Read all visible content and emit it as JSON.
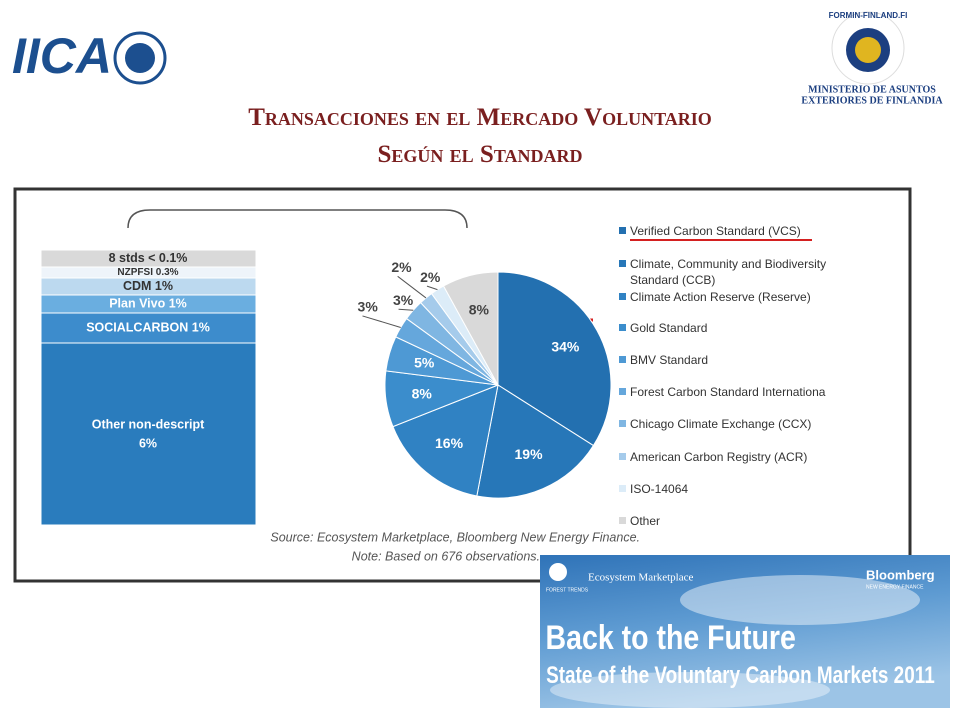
{
  "header": {
    "logo_left": "IICA",
    "logo_right_ring": "FORMIN-FINLAND.FI",
    "ministry_line1": "MINISTERIO DE ASUNTOS",
    "ministry_line2": "EXTERIORES DE FINLANDIA",
    "title_line1": "Transacciones en el Mercado Voluntario",
    "title_line2": "Según el Standard"
  },
  "chart_data": {
    "type": "pie",
    "categories": [
      "Verified Carbon Standard (VCS)",
      "Climate, Community and Biodiversity Standard (CCB)",
      "Climate Action Reserve (Reserve)",
      "Gold Standard",
      "BMV Standard",
      "Forest Carbon Standard Internationa",
      "Chicago Climate Exchange (CCX)",
      "American Carbon Registry (ACR)",
      "ISO-14064",
      "Other"
    ],
    "values": [
      34,
      19,
      16,
      8,
      5,
      3,
      3,
      2,
      2,
      8
    ],
    "value_labels": [
      "34%",
      "19%",
      "16%",
      "8%",
      "5%",
      "3%",
      "3%",
      "2%",
      "2%",
      "8%"
    ],
    "colors": [
      "#2370b0",
      "#2777b8",
      "#3082c3",
      "#3b8dcc",
      "#4e99d4",
      "#65a7dc",
      "#7fb6e2",
      "#a5cbeb",
      "#dcecf8",
      "#d9d9d9"
    ],
    "legend": "right",
    "breakdown": [
      {
        "label": "8 stds < 0.1%",
        "color": "#d9d9d9"
      },
      {
        "label": "NZPFSI 0.3%",
        "color": "#eef4fa"
      },
      {
        "label": "CDM 1%",
        "color": "#bcd9ef"
      },
      {
        "label": "Plan Vivo 1%",
        "color": "#6aaee0"
      },
      {
        "label": "SOCIALCARBON 1%",
        "color": "#3d8ccc"
      },
      {
        "label": "Other non-descript",
        "sublabel": "6%",
        "color": "#2a7cbd"
      }
    ],
    "source": "Source: Ecosystem Marketplace, Bloomberg New Energy Finance.",
    "note": "Note: Based on 676 observations."
  },
  "banner": {
    "brand": "Ecosystem Marketplace",
    "org": "FOREST TRENDS",
    "partner": "Bloomberg",
    "partner_sub": "NEW ENERGY FINANCE",
    "headline": "Back to the Future",
    "subline": "State of the Voluntary Carbon Markets 2011"
  }
}
